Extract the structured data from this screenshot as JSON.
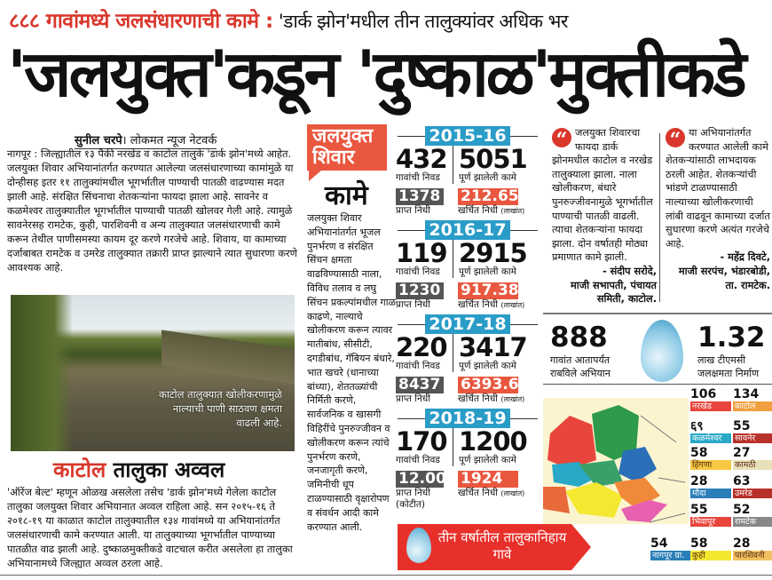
{
  "kicker": {
    "red": "८८८ गावांमध्ये जलसंधारणाची कामे :",
    "black": " 'डार्क झोन'मधील तीन तालुक्यांवर अधिक भर"
  },
  "headline": "'जलयुक्त'कडून 'दुष्काळ'मुक्तीकडे",
  "byline": {
    "author": "सुनील चरपे",
    "source": "। लोकमत न्यूज नेटवर्क"
  },
  "lead": "नागपूर : जिल्ह्यातील १३ पैकी नरखेड व काटोल तालुके 'डार्क झोन'मध्ये आहेत. जलयुक्त शिवार अभियानांतर्गत करण्यात आलेल्या जलसंधारणाच्या कामांमुळे या दोन्हीसह इतर ११ तालुक्यांमधील भूगर्भातील पाण्याची पातळी वाढण्यास मदत झाली आहे. संरक्षित सिंचनाचा शेतकऱ्यांना फायदा झाला आहे. सावनेर व कळमेश्वर तालुक्यातील भूगर्भातील पाण्याची पातळी खोलवर गेली आहे. त्यामुळे सावनेरसह रामटेक, कुही, पारशिवनी व अन्य तालुक्यात जलसंधारणाची कामे करून तेथील पाणीसमस्या कायम दूर करणे गरजेचे आहे. शिवाय, या कामाच्या दर्जाबाबत रामटेक व उमरेड तालुक्यात तक्रारी प्राप्त झाल्याने त्यात सुधारणा करणे आवश्यक आहे.",
  "photo_caption": "काटोल तालुक्यात खोलीकरणामुळे नाल्याची पाणी साठवण क्षमता वाढली आहे.",
  "subhead": {
    "red": "काटोल",
    "black": " तालुका अव्वल"
  },
  "subhead_body": "'ऑरेंज बेल्ट' म्हणून ओळख असलेला तसेच 'डार्क झोन'मध्ये गेलेला काटोल तालुका जलयुक्त शिवार अभियानात अव्वल राहिला आहे. सन २०१५-१६ ते २०१८-१९ या काळात काटोल तालुक्यातील १३४ गावांमध्ये या अभियानांतर्गत जलसंधारणाची कामे करण्यात आली. या तालुक्याच्या भूगर्भातील पाण्याच्या पातळीत वाढ झाली आहे. दुष्काळमुक्तीकडे वाटचाल करीत असलेला हा तालुका अभियानामध्ये जिल्ह्यात अव्वल ठरला आहे.",
  "works": {
    "tag": "जलयुक्त शिवार",
    "title": "कामे",
    "body": "जलयुक्त शिवार अभियानांतर्गत भूजल पुनर्भरण व संरक्षित सिंचन क्षमता वाढविण्यासाठी नाला, विविध तलाव व लघु सिंचन प्रकल्पांमधील गाळ काढणे, नाल्याचे खोलीकरण करून त्यावर मातीबांध, सीसीटी, दगडीबांध, गॅबियन बंधारे, भात खचरे (धानाच्या बांध्या), शेततळ्यांची निर्मिती करणे, सार्वजनिक व खासगी विहिरींचे पुनरुज्जीवन व खोलीकरण करून त्यांचे पुनर्भरण करणे, जनजागृती करणे, जमिनीची धूप टाळण्यासाठी वृक्षारोपण व संवर्धन आदी कामे करण्यात आली."
  },
  "stats": {
    "labels": {
      "villages": "गावांची निवड",
      "works": "पूर्ण झालेली कामे",
      "received": "प्राप्त निधी",
      "spent": "खर्चित निधी",
      "unit": "(लाखांत)"
    },
    "years": [
      {
        "year": "2015-16",
        "villages": "432",
        "works": "5051",
        "received": "1378",
        "spent": "212.65"
      },
      {
        "year": "2016-17",
        "villages": "119",
        "works": "2915",
        "received": "1230",
        "spent": "917.38"
      },
      {
        "year": "2017-18",
        "villages": "220",
        "works": "3417",
        "received": "8437",
        "spent": "6393.62"
      },
      {
        "year": "2018-19",
        "villages": "170",
        "works": "1200",
        "received": "12.00",
        "received_note": "(कोटीत)",
        "spent": "1924"
      }
    ]
  },
  "banner": "तीन वर्षातील तालुकानिहाय गावे",
  "quotes": [
    {
      "text": "जलयुक्त शिवारचा फायदा डार्क झोनमधील काटोल व नरखेड तालुक्याला झाला. नाला खोलीकरण, बंधारे पुनरुज्जीवनामुळे भूगर्भातील पाण्याची पातळी वाढली. त्याचा शेतकऱ्यांना फायदा झाला. दोन वर्षातही मोठ्या प्रमाणात कामे झाली.",
      "name": "- संदीप सरोदे,",
      "role": "माजी सभापती, पंचायत समिती, काटोल."
    },
    {
      "text": "या अभियानांतर्गत करण्यात आलेली कामे शेतकऱ्यांसाठी लाभदायक ठरली आहेत. शेतकऱ्यांची भांडणे टाळण्यासाठी नाल्याच्या खोलीकरणाची लांबी वाढवून कामाच्या दर्जात सुधारणा करणे अत्यंत गरजेचे आहे.",
      "name": "- महेंद्र दिवटे,",
      "role": "माजी सरपंच, भंडारबोडी, ता. रामटेक."
    }
  ],
  "totals": {
    "villages": "888",
    "villages_label": "गावांत आतापर्यंत राबविले अभियान",
    "capacity": "1.32",
    "capacity_label": "लाख टीएमसी जलक्षमता निर्माण"
  },
  "talukas": [
    {
      "name": "नरखेड",
      "value": "106",
      "color": "#e8453c"
    },
    {
      "name": "काटोल",
      "value": "134",
      "color": "#f0a040"
    },
    {
      "name": "कळमेश्वर",
      "value": "६९",
      "color": "#2aa8c8"
    },
    {
      "name": "सावनेर",
      "value": "55",
      "color": "#b8322a"
    },
    {
      "name": "हिंगणा",
      "value": "58",
      "color": "#f5c842"
    },
    {
      "name": "कामठी",
      "value": "27",
      "color": "#e8e0b8"
    },
    {
      "name": "मौदा",
      "value": "28",
      "color": "#2a7fb8"
    },
    {
      "name": "उमरेड",
      "value": "63",
      "color": "#b8302a"
    },
    {
      "name": "भिवापूर",
      "value": "55",
      "color": "#e8453c"
    },
    {
      "name": "रामटेक",
      "value": "52",
      "color": "#888888"
    },
    {
      "name": "नागपूर ग्रा.",
      "value": "54",
      "color": "#2a7fb8"
    },
    {
      "name": "कुही",
      "value": "58",
      "color": "#f5e830"
    },
    {
      "name": "पारशिवनी",
      "value": "28",
      "color": "#f0c060"
    }
  ]
}
